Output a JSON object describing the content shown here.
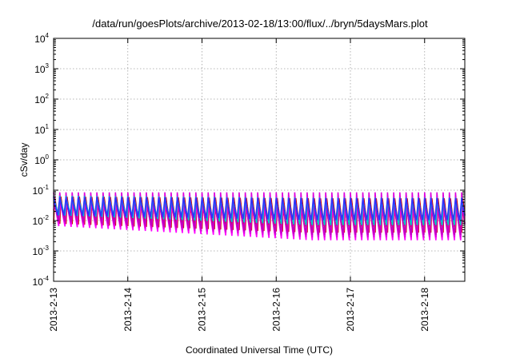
{
  "chart_data": {
    "type": "line",
    "title": "/data/run/goesPlots/archive/2013-02-18/13:00/flux/../bryn/5daysMars.plot",
    "xlabel": "Coordinated Universal Time (UTC)",
    "ylabel": "cSv/day",
    "y_scale": "log",
    "ylim": [
      0.0001,
      10000
    ],
    "y_ticks": [
      {
        "base": "10",
        "exp": "-4",
        "value": 0.0001
      },
      {
        "base": "10",
        "exp": "-3",
        "value": 0.001
      },
      {
        "base": "10",
        "exp": "-2",
        "value": 0.01
      },
      {
        "base": "10",
        "exp": "-1",
        "value": 0.1
      },
      {
        "base": "10",
        "exp": "0",
        "value": 1
      },
      {
        "base": "10",
        "exp": "1",
        "value": 10
      },
      {
        "base": "10",
        "exp": "2",
        "value": 100
      },
      {
        "base": "10",
        "exp": "3",
        "value": 1000
      },
      {
        "base": "10",
        "exp": "4",
        "value": 10000
      }
    ],
    "xlim": [
      "2013-02-13T00:00",
      "2013-02-18T13:00"
    ],
    "x_ticks": [
      "2013-2-13",
      "2013-2-14",
      "2013-2-15",
      "2013-2-16",
      "2013-2-17",
      "2013-2-18"
    ],
    "grid": true,
    "legend": "none",
    "sawtooth_period_hours": 2,
    "series": [
      {
        "color": "#cc0000",
        "peak": 0.1,
        "trough": 0.008,
        "late_trough": 0.004
      },
      {
        "color": "#ff00ff",
        "peak": 0.095,
        "trough": 0.005,
        "late_trough": 0.0015
      },
      {
        "color": "#dd00dd",
        "peak": 0.085,
        "trough": 0.007,
        "late_trough": 0.0022
      },
      {
        "color": "#c000c0",
        "peak": 0.075,
        "trough": 0.009,
        "late_trough": 0.003
      },
      {
        "color": "#00c8c8",
        "peak": 0.09,
        "trough": 0.015,
        "late_trough": 0.007
      },
      {
        "color": "#3030ff",
        "peak": 0.1,
        "trough": 0.012,
        "late_trough": 0.008
      }
    ]
  }
}
